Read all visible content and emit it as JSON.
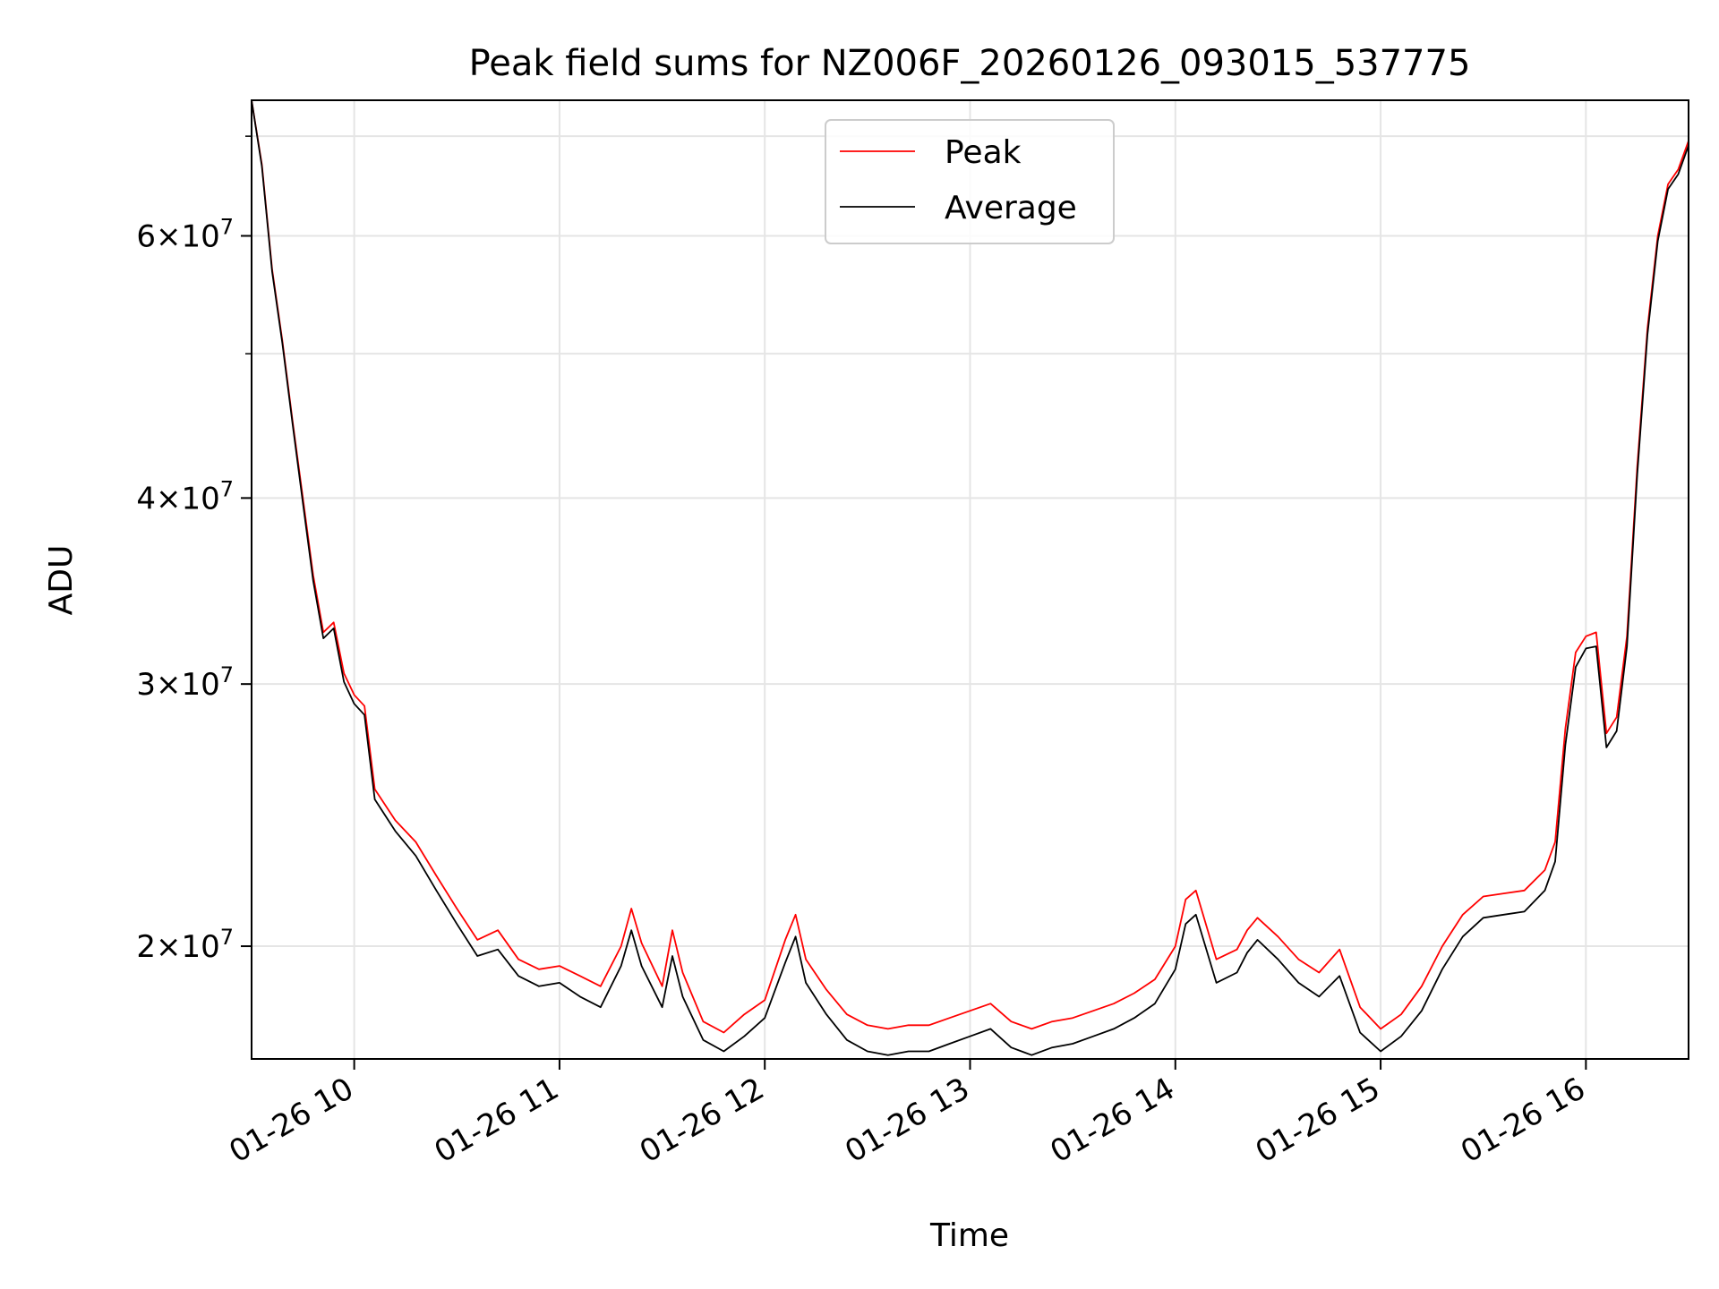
{
  "chart_data": {
    "type": "line",
    "title": "Peak field sums for NZ006F_20260126_093015_537775",
    "xlabel": "Time",
    "ylabel": "ADU",
    "y_scale": "log",
    "grid": true,
    "legend_location": "upper center",
    "x_range_hours": [
      9.5,
      16.5
    ],
    "ylim": [
      16800000,
      74000000
    ],
    "x_ticks": [
      {
        "hour": 10,
        "label": "01-26 10"
      },
      {
        "hour": 11,
        "label": "01-26 11"
      },
      {
        "hour": 12,
        "label": "01-26 12"
      },
      {
        "hour": 13,
        "label": "01-26 13"
      },
      {
        "hour": 14,
        "label": "01-26 14"
      },
      {
        "hour": 15,
        "label": "01-26 15"
      },
      {
        "hour": 16,
        "label": "01-26 16"
      }
    ],
    "y_ticks": [
      {
        "value": 20000000,
        "mantissa": "2",
        "exponent": "7"
      },
      {
        "value": 30000000,
        "mantissa": "3",
        "exponent": "7"
      },
      {
        "value": 40000000,
        "mantissa": "4",
        "exponent": "7"
      },
      {
        "value": 60000000,
        "mantissa": "6",
        "exponent": "7"
      }
    ],
    "y_minor_ticks": [
      50000000,
      70000000
    ],
    "series": [
      {
        "name": "Peak",
        "color": "#ff0000",
        "x_hours": [
          9.5,
          9.55,
          9.6,
          9.65,
          9.7,
          9.75,
          9.8,
          9.85,
          9.9,
          9.95,
          10.0,
          10.05,
          10.1,
          10.2,
          10.3,
          10.4,
          10.5,
          10.6,
          10.7,
          10.8,
          10.9,
          11.0,
          11.1,
          11.2,
          11.3,
          11.35,
          11.4,
          11.5,
          11.55,
          11.6,
          11.7,
          11.8,
          11.9,
          12.0,
          12.1,
          12.15,
          12.2,
          12.3,
          12.4,
          12.5,
          12.6,
          12.7,
          12.8,
          12.9,
          13.0,
          13.1,
          13.2,
          13.3,
          13.4,
          13.5,
          13.6,
          13.7,
          13.8,
          13.9,
          14.0,
          14.05,
          14.1,
          14.2,
          14.3,
          14.35,
          14.4,
          14.5,
          14.6,
          14.7,
          14.8,
          14.9,
          15.0,
          15.1,
          15.2,
          15.3,
          15.4,
          15.5,
          15.6,
          15.7,
          15.8,
          15.85,
          15.9,
          15.95,
          16.0,
          16.05,
          16.1,
          16.15,
          16.2,
          16.25,
          16.3,
          16.35,
          16.4,
          16.45,
          16.5
        ],
        "values": [
          74000000,
          67000000,
          57000000,
          51000000,
          45000000,
          40000000,
          35500000,
          32500000,
          33000000,
          30500000,
          29500000,
          29000000,
          25500000,
          24300000,
          23500000,
          22300000,
          21200000,
          20200000,
          20500000,
          19600000,
          19300000,
          19400000,
          19100000,
          18800000,
          20000000,
          21200000,
          20100000,
          18800000,
          20500000,
          19200000,
          17800000,
          17500000,
          18000000,
          18400000,
          20200000,
          21000000,
          19600000,
          18700000,
          18000000,
          17700000,
          17600000,
          17700000,
          17700000,
          17900000,
          18100000,
          18300000,
          17800000,
          17600000,
          17800000,
          17900000,
          18100000,
          18300000,
          18600000,
          19000000,
          20000000,
          21500000,
          21800000,
          19600000,
          19900000,
          20500000,
          20900000,
          20300000,
          19600000,
          19200000,
          19900000,
          18200000,
          17600000,
          18000000,
          18800000,
          20000000,
          21000000,
          21600000,
          21700000,
          21800000,
          22500000,
          23500000,
          28000000,
          31500000,
          32300000,
          32500000,
          27800000,
          28500000,
          32300000,
          42000000,
          52000000,
          60000000,
          65000000,
          66500000,
          69500000
        ]
      },
      {
        "name": "Average",
        "color": "#000000",
        "x_hours": [
          9.5,
          9.55,
          9.6,
          9.65,
          9.7,
          9.75,
          9.8,
          9.85,
          9.9,
          9.95,
          10.0,
          10.05,
          10.1,
          10.2,
          10.3,
          10.4,
          10.5,
          10.6,
          10.7,
          10.8,
          10.9,
          11.0,
          11.1,
          11.2,
          11.3,
          11.35,
          11.4,
          11.5,
          11.55,
          11.6,
          11.7,
          11.8,
          11.9,
          12.0,
          12.1,
          12.15,
          12.2,
          12.3,
          12.4,
          12.5,
          12.6,
          12.7,
          12.8,
          12.9,
          13.0,
          13.1,
          13.2,
          13.3,
          13.4,
          13.5,
          13.6,
          13.7,
          13.8,
          13.9,
          14.0,
          14.05,
          14.1,
          14.2,
          14.3,
          14.35,
          14.4,
          14.5,
          14.6,
          14.7,
          14.8,
          14.9,
          15.0,
          15.1,
          15.2,
          15.3,
          15.4,
          15.5,
          15.6,
          15.7,
          15.8,
          15.85,
          15.9,
          15.95,
          16.0,
          16.05,
          16.1,
          16.15,
          16.2,
          16.25,
          16.3,
          16.35,
          16.4,
          16.45,
          16.5
        ],
        "values": [
          74000000,
          66800000,
          56800000,
          50800000,
          44800000,
          39700000,
          35200000,
          32200000,
          32700000,
          30100000,
          29100000,
          28600000,
          25100000,
          23900000,
          23000000,
          21800000,
          20700000,
          19700000,
          19900000,
          19100000,
          18800000,
          18900000,
          18500000,
          18200000,
          19400000,
          20500000,
          19400000,
          18200000,
          19700000,
          18500000,
          17300000,
          17000000,
          17400000,
          17900000,
          19500000,
          20300000,
          18900000,
          18000000,
          17300000,
          17000000,
          16900000,
          17000000,
          17000000,
          17200000,
          17400000,
          17600000,
          17100000,
          16900000,
          17100000,
          17200000,
          17400000,
          17600000,
          17900000,
          18300000,
          19300000,
          20700000,
          21000000,
          18900000,
          19200000,
          19800000,
          20200000,
          19600000,
          18900000,
          18500000,
          19100000,
          17500000,
          17000000,
          17400000,
          18100000,
          19300000,
          20300000,
          20900000,
          21000000,
          21100000,
          21800000,
          22800000,
          27300000,
          30800000,
          31700000,
          31800000,
          27200000,
          27900000,
          31800000,
          41500000,
          51500000,
          59500000,
          64500000,
          66000000,
          69000000
        ]
      }
    ]
  }
}
